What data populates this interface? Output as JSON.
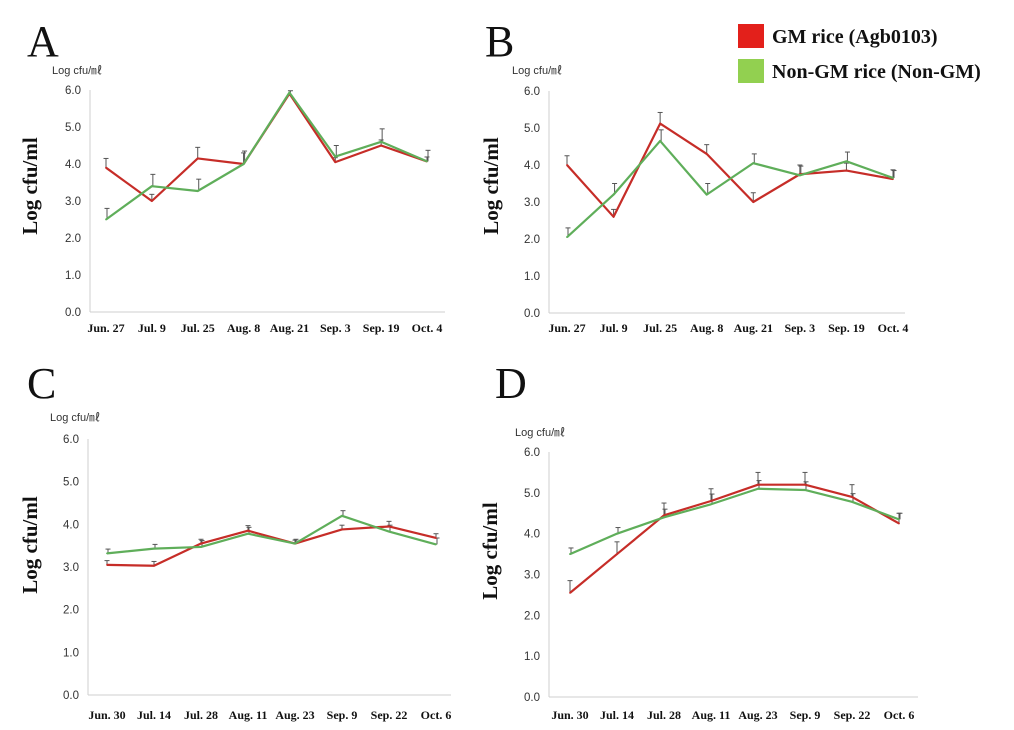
{
  "legend": {
    "items": [
      {
        "label": "GM rice (Agb0103)",
        "color": "#e3201b"
      },
      {
        "label": "Non-GM rice (Non-GM)",
        "color": "#92d050"
      }
    ]
  },
  "line_colors": {
    "gm": "#c62d28",
    "nongm": "#5fae5a"
  },
  "chart_data": [
    {
      "panel": "A",
      "type": "line",
      "unit_label": "Log cfu/㎖",
      "ylabel": "Log cfu/ml",
      "ylim": [
        0,
        6
      ],
      "yticks": [
        "0.0",
        "1.0",
        "2.0",
        "3.0",
        "4.0",
        "5.0",
        "6.0"
      ],
      "categories": [
        "Jun. 27",
        "Jul. 9",
        "Jul. 25",
        "Aug. 8",
        "Aug. 21",
        "Sep. 3",
        "Sep. 19",
        "Oct. 4"
      ],
      "series": [
        {
          "name": "GM rice (Agb0103)",
          "values": [
            3.9,
            3.0,
            4.15,
            4.0,
            5.9,
            4.05,
            4.5,
            4.07
          ],
          "err": [
            0.25,
            0.18,
            0.3,
            0.3,
            0.0,
            0.12,
            0.15,
            0.12
          ]
        },
        {
          "name": "Non-GM rice (Non-GM)",
          "values": [
            2.5,
            3.4,
            3.27,
            4.0,
            5.93,
            4.2,
            4.6,
            4.07
          ],
          "err": [
            0.3,
            0.32,
            0.32,
            0.35,
            0.05,
            0.3,
            0.35,
            0.3
          ]
        }
      ]
    },
    {
      "panel": "B",
      "type": "line",
      "unit_label": "Log cfu/㎖",
      "ylabel": "Log cfu/ml",
      "ylim": [
        0,
        6
      ],
      "yticks": [
        "0.0",
        "1.0",
        "2.0",
        "3.0",
        "4.0",
        "5.0",
        "6.0"
      ],
      "categories": [
        "Jun. 27",
        "Jul. 9",
        "Jul. 25",
        "Aug. 8",
        "Aug. 21",
        "Sep. 3",
        "Sep. 19",
        "Oct. 4"
      ],
      "series": [
        {
          "name": "GM rice (Agb0103)",
          "values": [
            4.0,
            2.6,
            5.12,
            4.3,
            3.0,
            3.75,
            3.85,
            3.62
          ],
          "err": [
            0.25,
            0.2,
            0.3,
            0.25,
            0.25,
            0.25,
            0.2,
            0.25
          ]
        },
        {
          "name": "Non-GM rice (Non-GM)",
          "values": [
            2.05,
            3.2,
            4.65,
            3.2,
            4.05,
            3.72,
            4.1,
            3.65
          ],
          "err": [
            0.25,
            0.3,
            0.3,
            0.3,
            0.25,
            0.25,
            0.25,
            0.2
          ]
        }
      ]
    },
    {
      "panel": "C",
      "type": "line",
      "unit_label": "Log cfu/㎖",
      "ylabel": "Log cfu/ml",
      "ylim": [
        0,
        6
      ],
      "yticks": [
        "0.0",
        "1.0",
        "2.0",
        "3.0",
        "4.0",
        "5.0",
        "6.0"
      ],
      "categories": [
        "Jun. 30",
        "Jul. 14",
        "Jul. 28",
        "Aug. 11",
        "Aug. 23",
        "Sep. 9",
        "Sep. 22",
        "Oct. 6"
      ],
      "series": [
        {
          "name": "GM rice (Agb0103)",
          "values": [
            3.05,
            3.03,
            3.55,
            3.85,
            3.55,
            3.88,
            3.95,
            3.68
          ],
          "err": [
            0.1,
            0.1,
            0.1,
            0.12,
            0.08,
            0.1,
            0.12,
            0.1
          ]
        },
        {
          "name": "Non-GM rice (Non-GM)",
          "values": [
            3.32,
            3.43,
            3.47,
            3.78,
            3.55,
            4.2,
            3.83,
            3.53
          ],
          "err": [
            0.1,
            0.1,
            0.15,
            0.15,
            0.1,
            0.12,
            0.15,
            0.15
          ]
        }
      ]
    },
    {
      "panel": "D",
      "type": "line",
      "unit_label": "Log cfu/㎖",
      "ylabel": "Log cfu/ml",
      "ylim": [
        0,
        6
      ],
      "yticks": [
        "0.0",
        "1.0",
        "2.0",
        "3.0",
        "4.0",
        "5.0",
        "6.0"
      ],
      "categories": [
        "Jun. 30",
        "Jul. 14",
        "Jul. 28",
        "Aug. 11",
        "Aug. 23",
        "Sep. 9",
        "Sep. 22",
        "Oct. 6"
      ],
      "series": [
        {
          "name": "GM rice (Agb0103)",
          "values": [
            2.55,
            3.5,
            4.45,
            4.8,
            5.2,
            5.2,
            4.9,
            4.25
          ],
          "err": [
            0.3,
            0.3,
            0.3,
            0.3,
            0.3,
            0.3,
            0.3,
            0.25
          ]
        },
        {
          "name": "Non-GM rice (Non-GM)",
          "values": [
            3.5,
            4.0,
            4.4,
            4.72,
            5.1,
            5.07,
            4.78,
            4.35
          ],
          "err": [
            0.15,
            0.15,
            0.2,
            0.25,
            0.2,
            0.2,
            0.2,
            0.15
          ]
        }
      ]
    }
  ]
}
